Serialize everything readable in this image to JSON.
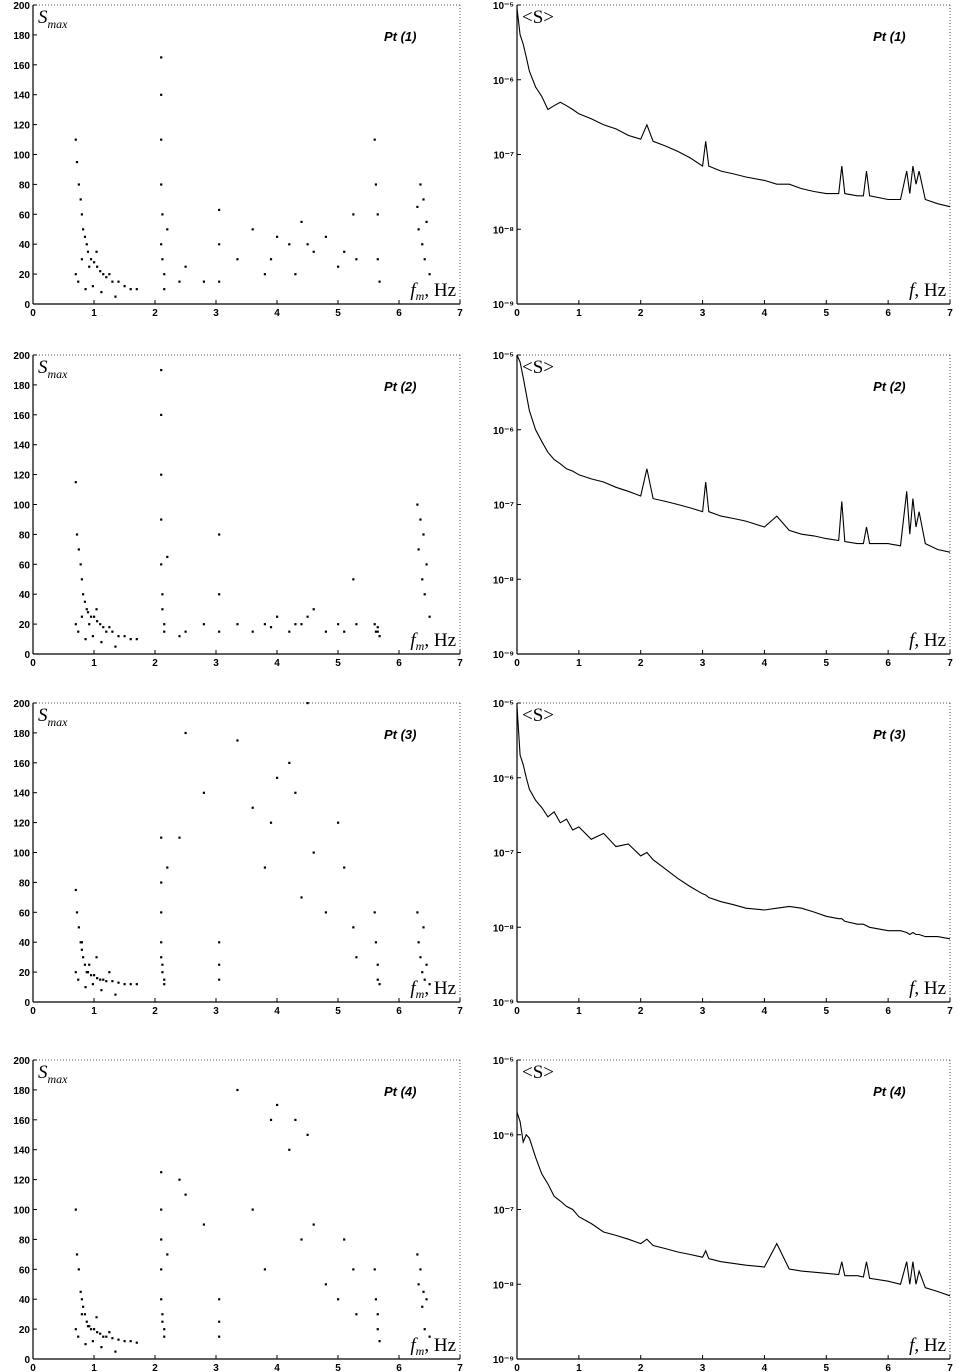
{
  "chart_data": [
    {
      "type": "scatter",
      "title": "Pt (1)",
      "ylabel": {
        "main": "S",
        "sub": "max"
      },
      "xlabel": {
        "main": "f",
        "sub": "m",
        "rest": ", Hz"
      },
      "color": "#000000",
      "x": [
        0.7,
        0.72,
        0.75,
        0.78,
        0.8,
        0.82,
        0.85,
        0.88,
        0.9,
        0.95,
        1.0,
        1.05,
        1.1,
        1.15,
        1.2,
        1.3,
        1.4,
        1.5,
        1.6,
        1.7,
        0.7,
        0.74,
        0.8,
        0.86,
        0.92,
        0.98,
        1.04,
        1.12,
        1.25,
        1.35,
        2.1,
        2.1,
        2.1,
        2.1,
        2.1,
        2.12,
        2.12,
        2.15,
        2.15,
        2.2,
        3.05,
        3.05,
        3.05,
        3.35,
        3.6,
        3.8,
        4.0,
        4.2,
        4.4,
        4.6,
        4.8,
        5.0,
        5.25,
        5.3,
        5.6,
        5.62,
        5.65,
        5.65,
        5.68,
        6.3,
        6.32,
        6.35,
        6.38,
        6.4,
        6.42,
        6.45,
        6.5,
        2.5,
        2.8,
        3.9,
        4.5,
        5.1,
        2.4,
        4.3
      ],
      "y": [
        110,
        95,
        80,
        70,
        60,
        50,
        45,
        40,
        35,
        30,
        28,
        25,
        22,
        20,
        18,
        15,
        15,
        12,
        10,
        10,
        20,
        15,
        30,
        10,
        25,
        12,
        35,
        8,
        20,
        5,
        165,
        140,
        110,
        80,
        40,
        60,
        30,
        20,
        10,
        50,
        63,
        40,
        15,
        30,
        50,
        20,
        45,
        40,
        55,
        35,
        45,
        25,
        60,
        30,
        110,
        80,
        60,
        30,
        15,
        65,
        50,
        80,
        40,
        70,
        30,
        55,
        20,
        25,
        15,
        30,
        40,
        35,
        15,
        20
      ],
      "xlim": [
        0,
        7
      ],
      "ylim": [
        0,
        200
      ],
      "xticks": [
        0,
        1,
        2,
        3,
        4,
        5,
        6,
        7
      ],
      "yticks": [
        0,
        20,
        40,
        60,
        80,
        100,
        120,
        140,
        160,
        180,
        200
      ]
    },
    {
      "type": "line",
      "title": "Pt (1)",
      "ylabel": {
        "main": "<S>"
      },
      "xlabel": {
        "main": "f",
        "rest": ", Hz"
      },
      "color": "#000000",
      "log_y": true,
      "x": [
        0,
        0.05,
        0.1,
        0.15,
        0.2,
        0.3,
        0.4,
        0.5,
        0.6,
        0.7,
        0.8,
        0.9,
        1.0,
        1.2,
        1.4,
        1.6,
        1.8,
        2.0,
        2.1,
        2.2,
        2.4,
        2.6,
        2.8,
        3.0,
        3.05,
        3.1,
        3.3,
        3.5,
        3.7,
        4.0,
        4.2,
        4.4,
        4.6,
        4.8,
        5.0,
        5.2,
        5.25,
        5.3,
        5.5,
        5.6,
        5.65,
        5.7,
        6.0,
        6.2,
        6.3,
        6.35,
        6.4,
        6.45,
        6.5,
        6.6,
        6.8,
        7.0
      ],
      "values": [
        9e-06,
        4e-06,
        3e-06,
        2e-06,
        1.3e-06,
        8e-07,
        6e-07,
        4e-07,
        4.5e-07,
        5e-07,
        4.5e-07,
        4e-07,
        3.5e-07,
        3e-07,
        2.5e-07,
        2.2e-07,
        1.8e-07,
        1.6e-07,
        2.5e-07,
        1.5e-07,
        1.3e-07,
        1.1e-07,
        9e-08,
        7e-08,
        1.5e-07,
        7e-08,
        6e-08,
        5.5e-08,
        5e-08,
        4.5e-08,
        4e-08,
        4e-08,
        3.5e-08,
        3.2e-08,
        3e-08,
        3e-08,
        7e-08,
        3e-08,
        2.8e-08,
        2.8e-08,
        6e-08,
        2.8e-08,
        2.5e-08,
        2.5e-08,
        6e-08,
        3e-08,
        7e-08,
        4e-08,
        6e-08,
        2.5e-08,
        2.2e-08,
        2e-08
      ],
      "xlim": [
        0,
        7
      ],
      "ylim": [
        1e-09,
        1e-05
      ],
      "xticks": [
        0,
        1,
        2,
        3,
        4,
        5,
        6,
        7
      ],
      "yticks": [
        {
          "value": 1e-09,
          "label": "10⁻⁹"
        },
        {
          "value": 1e-08,
          "label": "10⁻⁸"
        },
        {
          "value": 1e-07,
          "label": "10⁻⁷"
        },
        {
          "value": 1e-06,
          "label": "10⁻⁶"
        },
        {
          "value": 1e-05,
          "label": "10⁻⁵"
        }
      ]
    },
    {
      "type": "scatter",
      "title": "Pt (2)",
      "ylabel": {
        "main": "S",
        "sub": "max"
      },
      "xlabel": {
        "main": "f",
        "sub": "m",
        "rest": ", Hz"
      },
      "color": "#000000",
      "x": [
        0.7,
        0.72,
        0.75,
        0.78,
        0.8,
        0.82,
        0.85,
        0.88,
        0.9,
        0.95,
        1.0,
        1.05,
        1.1,
        1.15,
        1.2,
        1.3,
        1.4,
        1.5,
        1.6,
        1.7,
        0.7,
        0.74,
        0.8,
        0.86,
        0.92,
        0.98,
        1.04,
        1.12,
        1.25,
        1.35,
        2.1,
        2.1,
        2.1,
        2.1,
        2.1,
        2.12,
        2.12,
        2.15,
        2.15,
        2.2,
        3.05,
        3.05,
        3.05,
        3.35,
        3.6,
        3.8,
        4.0,
        4.2,
        4.4,
        4.6,
        4.8,
        5.0,
        5.25,
        5.3,
        5.6,
        5.62,
        5.65,
        5.65,
        5.68,
        6.3,
        6.32,
        6.35,
        6.38,
        6.4,
        6.42,
        6.45,
        6.5,
        2.5,
        2.8,
        3.9,
        4.5,
        5.1,
        2.4,
        4.3
      ],
      "y": [
        115,
        80,
        70,
        60,
        50,
        40,
        35,
        30,
        28,
        25,
        25,
        22,
        20,
        18,
        15,
        15,
        12,
        12,
        10,
        10,
        20,
        15,
        25,
        10,
        20,
        12,
        30,
        8,
        18,
        5,
        190,
        160,
        120,
        90,
        60,
        40,
        30,
        20,
        15,
        65,
        80,
        40,
        15,
        20,
        15,
        20,
        25,
        15,
        20,
        30,
        15,
        20,
        50,
        20,
        20,
        15,
        18,
        15,
        12,
        100,
        70,
        90,
        50,
        80,
        40,
        60,
        25,
        15,
        20,
        18,
        25,
        15,
        12,
        20
      ],
      "xlim": [
        0,
        7
      ],
      "ylim": [
        0,
        200
      ],
      "xticks": [
        0,
        1,
        2,
        3,
        4,
        5,
        6,
        7
      ],
      "yticks": [
        0,
        20,
        40,
        60,
        80,
        100,
        120,
        140,
        160,
        180,
        200
      ]
    },
    {
      "type": "line",
      "title": "Pt (2)",
      "ylabel": {
        "main": "<S>"
      },
      "xlabel": {
        "main": "f",
        "rest": ", Hz"
      },
      "color": "#000000",
      "log_y": true,
      "x": [
        0,
        0.05,
        0.1,
        0.15,
        0.2,
        0.3,
        0.4,
        0.5,
        0.6,
        0.7,
        0.8,
        0.9,
        1.0,
        1.2,
        1.4,
        1.6,
        1.8,
        2.0,
        2.1,
        2.2,
        2.4,
        2.6,
        2.8,
        3.0,
        3.05,
        3.1,
        3.3,
        3.5,
        3.7,
        4.0,
        4.2,
        4.4,
        4.6,
        4.8,
        5.0,
        5.2,
        5.25,
        5.3,
        5.5,
        5.6,
        5.65,
        5.7,
        6.0,
        6.2,
        6.3,
        6.35,
        6.4,
        6.45,
        6.5,
        6.6,
        6.8,
        7.0
      ],
      "values": [
        1e-05,
        8e-06,
        5e-06,
        3e-06,
        1.8e-06,
        1e-06,
        7e-07,
        5e-07,
        4e-07,
        3.5e-07,
        3e-07,
        2.8e-07,
        2.5e-07,
        2.2e-07,
        2e-07,
        1.7e-07,
        1.5e-07,
        1.3e-07,
        3e-07,
        1.2e-07,
        1.1e-07,
        1e-07,
        9e-08,
        8e-08,
        2e-07,
        8e-08,
        7e-08,
        6.5e-08,
        6e-08,
        5e-08,
        7e-08,
        4.5e-08,
        4e-08,
        3.8e-08,
        3.5e-08,
        3.3e-08,
        1.1e-07,
        3.2e-08,
        3e-08,
        3e-08,
        5e-08,
        3e-08,
        3e-08,
        2.8e-08,
        1.5e-07,
        4e-08,
        1.2e-07,
        5e-08,
        8e-08,
        3e-08,
        2.5e-08,
        2.3e-08
      ],
      "xlim": [
        0,
        7
      ],
      "ylim": [
        1e-09,
        1e-05
      ],
      "xticks": [
        0,
        1,
        2,
        3,
        4,
        5,
        6,
        7
      ],
      "yticks": [
        {
          "value": 1e-09,
          "label": "10⁻⁹"
        },
        {
          "value": 1e-08,
          "label": "10⁻⁸"
        },
        {
          "value": 1e-07,
          "label": "10⁻⁷"
        },
        {
          "value": 1e-06,
          "label": "10⁻⁶"
        },
        {
          "value": 1e-05,
          "label": "10⁻⁵"
        }
      ]
    },
    {
      "type": "scatter",
      "title": "Pt (3)",
      "ylabel": {
        "main": "S",
        "sub": "max"
      },
      "xlabel": {
        "main": "f",
        "sub": "m",
        "rest": ", Hz"
      },
      "color": "#000000",
      "x": [
        0.7,
        0.72,
        0.75,
        0.78,
        0.8,
        0.82,
        0.85,
        0.88,
        0.9,
        0.95,
        1.0,
        1.05,
        1.1,
        1.15,
        1.2,
        1.3,
        1.4,
        1.5,
        1.6,
        1.7,
        0.7,
        0.74,
        0.8,
        0.86,
        0.92,
        0.98,
        1.04,
        1.12,
        1.25,
        1.35,
        2.1,
        2.1,
        2.1,
        2.1,
        2.1,
        2.12,
        2.12,
        2.15,
        2.15,
        2.2,
        3.05,
        3.05,
        3.05,
        3.35,
        3.6,
        3.8,
        4.0,
        4.2,
        4.4,
        4.6,
        4.8,
        5.0,
        5.25,
        5.3,
        5.6,
        5.62,
        5.65,
        5.65,
        5.68,
        6.3,
        6.32,
        6.35,
        6.38,
        6.4,
        6.42,
        6.45,
        6.5,
        2.5,
        2.8,
        3.9,
        4.5,
        5.1,
        2.4,
        4.3
      ],
      "y": [
        75,
        60,
        50,
        40,
        35,
        30,
        25,
        20,
        20,
        18,
        18,
        16,
        15,
        15,
        14,
        14,
        13,
        12,
        12,
        12,
        20,
        15,
        40,
        10,
        25,
        12,
        30,
        8,
        20,
        5,
        110,
        80,
        60,
        40,
        30,
        25,
        20,
        15,
        12,
        90,
        40,
        25,
        15,
        175,
        130,
        90,
        150,
        160,
        70,
        100,
        60,
        120,
        50,
        30,
        60,
        40,
        25,
        15,
        12,
        60,
        40,
        30,
        20,
        50,
        15,
        25,
        12,
        180,
        140,
        120,
        200,
        90,
        110,
        140
      ],
      "xlim": [
        0,
        7
      ],
      "ylim": [
        0,
        200
      ],
      "xticks": [
        0,
        1,
        2,
        3,
        4,
        5,
        6,
        7
      ],
      "yticks": [
        0,
        20,
        40,
        60,
        80,
        100,
        120,
        140,
        160,
        180,
        200
      ]
    },
    {
      "type": "line",
      "title": "Pt (3)",
      "ylabel": {
        "main": "<S>"
      },
      "xlabel": {
        "main": "f",
        "rest": ", Hz"
      },
      "color": "#000000",
      "log_y": true,
      "x": [
        0,
        0.05,
        0.1,
        0.15,
        0.2,
        0.3,
        0.4,
        0.5,
        0.6,
        0.7,
        0.8,
        0.9,
        1.0,
        1.2,
        1.4,
        1.6,
        1.8,
        2.0,
        2.1,
        2.2,
        2.4,
        2.6,
        2.8,
        3.0,
        3.05,
        3.1,
        3.3,
        3.5,
        3.7,
        4.0,
        4.2,
        4.4,
        4.6,
        4.8,
        5.0,
        5.2,
        5.25,
        5.3,
        5.5,
        5.6,
        5.65,
        5.7,
        6.0,
        6.2,
        6.3,
        6.35,
        6.4,
        6.45,
        6.5,
        6.6,
        6.8,
        7.0
      ],
      "values": [
        9e-06,
        2e-06,
        1.5e-06,
        1e-06,
        7e-07,
        5e-07,
        4e-07,
        3e-07,
        3.5e-07,
        2.5e-07,
        2.8e-07,
        2e-07,
        2.2e-07,
        1.5e-07,
        1.8e-07,
        1.2e-07,
        1.3e-07,
        9e-08,
        1e-07,
        8e-08,
        6e-08,
        4.5e-08,
        3.5e-08,
        2.8e-08,
        2.7e-08,
        2.5e-08,
        2.2e-08,
        2e-08,
        1.8e-08,
        1.7e-08,
        1.8e-08,
        1.9e-08,
        1.8e-08,
        1.6e-08,
        1.4e-08,
        1.3e-08,
        1.3e-08,
        1.2e-08,
        1.1e-08,
        1.1e-08,
        1.05e-08,
        1e-08,
        9e-09,
        9e-09,
        8.5e-09,
        8e-09,
        8.5e-09,
        8e-09,
        8e-09,
        7.5e-09,
        7.5e-09,
        7e-09
      ],
      "xlim": [
        0,
        7
      ],
      "ylim": [
        1e-09,
        1e-05
      ],
      "xticks": [
        0,
        1,
        2,
        3,
        4,
        5,
        6,
        7
      ],
      "yticks": [
        {
          "value": 1e-09,
          "label": "10⁻⁹"
        },
        {
          "value": 1e-08,
          "label": "10⁻⁸"
        },
        {
          "value": 1e-07,
          "label": "10⁻⁷"
        },
        {
          "value": 1e-06,
          "label": "10⁻⁶"
        },
        {
          "value": 1e-05,
          "label": "10⁻⁵"
        }
      ]
    },
    {
      "type": "scatter",
      "title": "Pt (4)",
      "ylabel": {
        "main": "S",
        "sub": "max"
      },
      "xlabel": {
        "main": "f",
        "sub": "m",
        "rest": ", Hz"
      },
      "color": "#000000",
      "x": [
        0.7,
        0.72,
        0.75,
        0.78,
        0.8,
        0.82,
        0.85,
        0.88,
        0.9,
        0.95,
        1.0,
        1.05,
        1.1,
        1.15,
        1.2,
        1.3,
        1.4,
        1.5,
        1.6,
        1.7,
        0.7,
        0.74,
        0.8,
        0.86,
        0.92,
        0.98,
        1.04,
        1.12,
        1.25,
        1.35,
        2.1,
        2.1,
        2.1,
        2.1,
        2.1,
        2.12,
        2.12,
        2.15,
        2.15,
        2.2,
        3.05,
        3.05,
        3.05,
        3.35,
        3.6,
        3.8,
        4.0,
        4.2,
        4.4,
        4.6,
        4.8,
        5.0,
        5.25,
        5.3,
        5.6,
        5.62,
        5.65,
        5.65,
        5.68,
        6.3,
        6.32,
        6.35,
        6.38,
        6.4,
        6.42,
        6.45,
        6.5,
        2.5,
        2.8,
        3.9,
        4.5,
        5.1,
        2.4,
        4.3
      ],
      "y": [
        100,
        70,
        60,
        45,
        40,
        35,
        30,
        25,
        22,
        20,
        20,
        18,
        17,
        15,
        15,
        14,
        13,
        12,
        12,
        11,
        20,
        15,
        30,
        10,
        22,
        12,
        28,
        8,
        18,
        5,
        125,
        100,
        80,
        60,
        40,
        30,
        25,
        20,
        15,
        70,
        40,
        25,
        15,
        180,
        100,
        60,
        170,
        140,
        80,
        90,
        50,
        40,
        60,
        30,
        60,
        40,
        30,
        20,
        12,
        70,
        50,
        60,
        35,
        45,
        20,
        40,
        15,
        110,
        90,
        160,
        150,
        80,
        120,
        160
      ],
      "xlim": [
        0,
        7
      ],
      "ylim": [
        0,
        200
      ],
      "xticks": [
        0,
        1,
        2,
        3,
        4,
        5,
        6,
        7
      ],
      "yticks": [
        0,
        20,
        40,
        60,
        80,
        100,
        120,
        140,
        160,
        180,
        200
      ]
    },
    {
      "type": "line",
      "title": "Pt (4)",
      "ylabel": {
        "main": "<S>"
      },
      "xlabel": {
        "main": "f",
        "rest": ", Hz"
      },
      "color": "#000000",
      "log_y": true,
      "x": [
        0,
        0.05,
        0.1,
        0.15,
        0.2,
        0.3,
        0.4,
        0.5,
        0.6,
        0.7,
        0.8,
        0.9,
        1.0,
        1.2,
        1.4,
        1.6,
        1.8,
        2.0,
        2.1,
        2.2,
        2.4,
        2.6,
        2.8,
        3.0,
        3.05,
        3.1,
        3.3,
        3.5,
        3.7,
        4.0,
        4.2,
        4.4,
        4.6,
        4.8,
        5.0,
        5.2,
        5.25,
        5.3,
        5.5,
        5.6,
        5.65,
        5.7,
        6.0,
        6.2,
        6.3,
        6.35,
        6.4,
        6.45,
        6.5,
        6.6,
        6.8,
        7.0
      ],
      "values": [
        2e-06,
        1.5e-06,
        8e-07,
        1e-06,
        9e-07,
        5e-07,
        3e-07,
        2.2e-07,
        1.5e-07,
        1.3e-07,
        1.1e-07,
        1e-07,
        8e-08,
        6.5e-08,
        5e-08,
        4.5e-08,
        4e-08,
        3.5e-08,
        4e-08,
        3.3e-08,
        3e-08,
        2.7e-08,
        2.5e-08,
        2.3e-08,
        2.8e-08,
        2.2e-08,
        2e-08,
        1.9e-08,
        1.8e-08,
        1.7e-08,
        3.5e-08,
        1.6e-08,
        1.5e-08,
        1.45e-08,
        1.4e-08,
        1.35e-08,
        2e-08,
        1.3e-08,
        1.3e-08,
        1.25e-08,
        2e-08,
        1.2e-08,
        1.1e-08,
        1e-08,
        2e-08,
        1e-08,
        2e-08,
        1e-08,
        1.5e-08,
        9e-09,
        8e-09,
        7e-09
      ],
      "xlim": [
        0,
        7
      ],
      "ylim": [
        1e-09,
        1e-05
      ],
      "xticks": [
        0,
        1,
        2,
        3,
        4,
        5,
        6,
        7
      ],
      "yticks": [
        {
          "value": 1e-09,
          "label": "10⁻⁹"
        },
        {
          "value": 1e-08,
          "label": "10⁻⁸"
        },
        {
          "value": 1e-07,
          "label": "10⁻⁷"
        },
        {
          "value": 1e-06,
          "label": "10⁻⁶"
        },
        {
          "value": 1e-05,
          "label": "10⁻⁵"
        }
      ]
    }
  ]
}
